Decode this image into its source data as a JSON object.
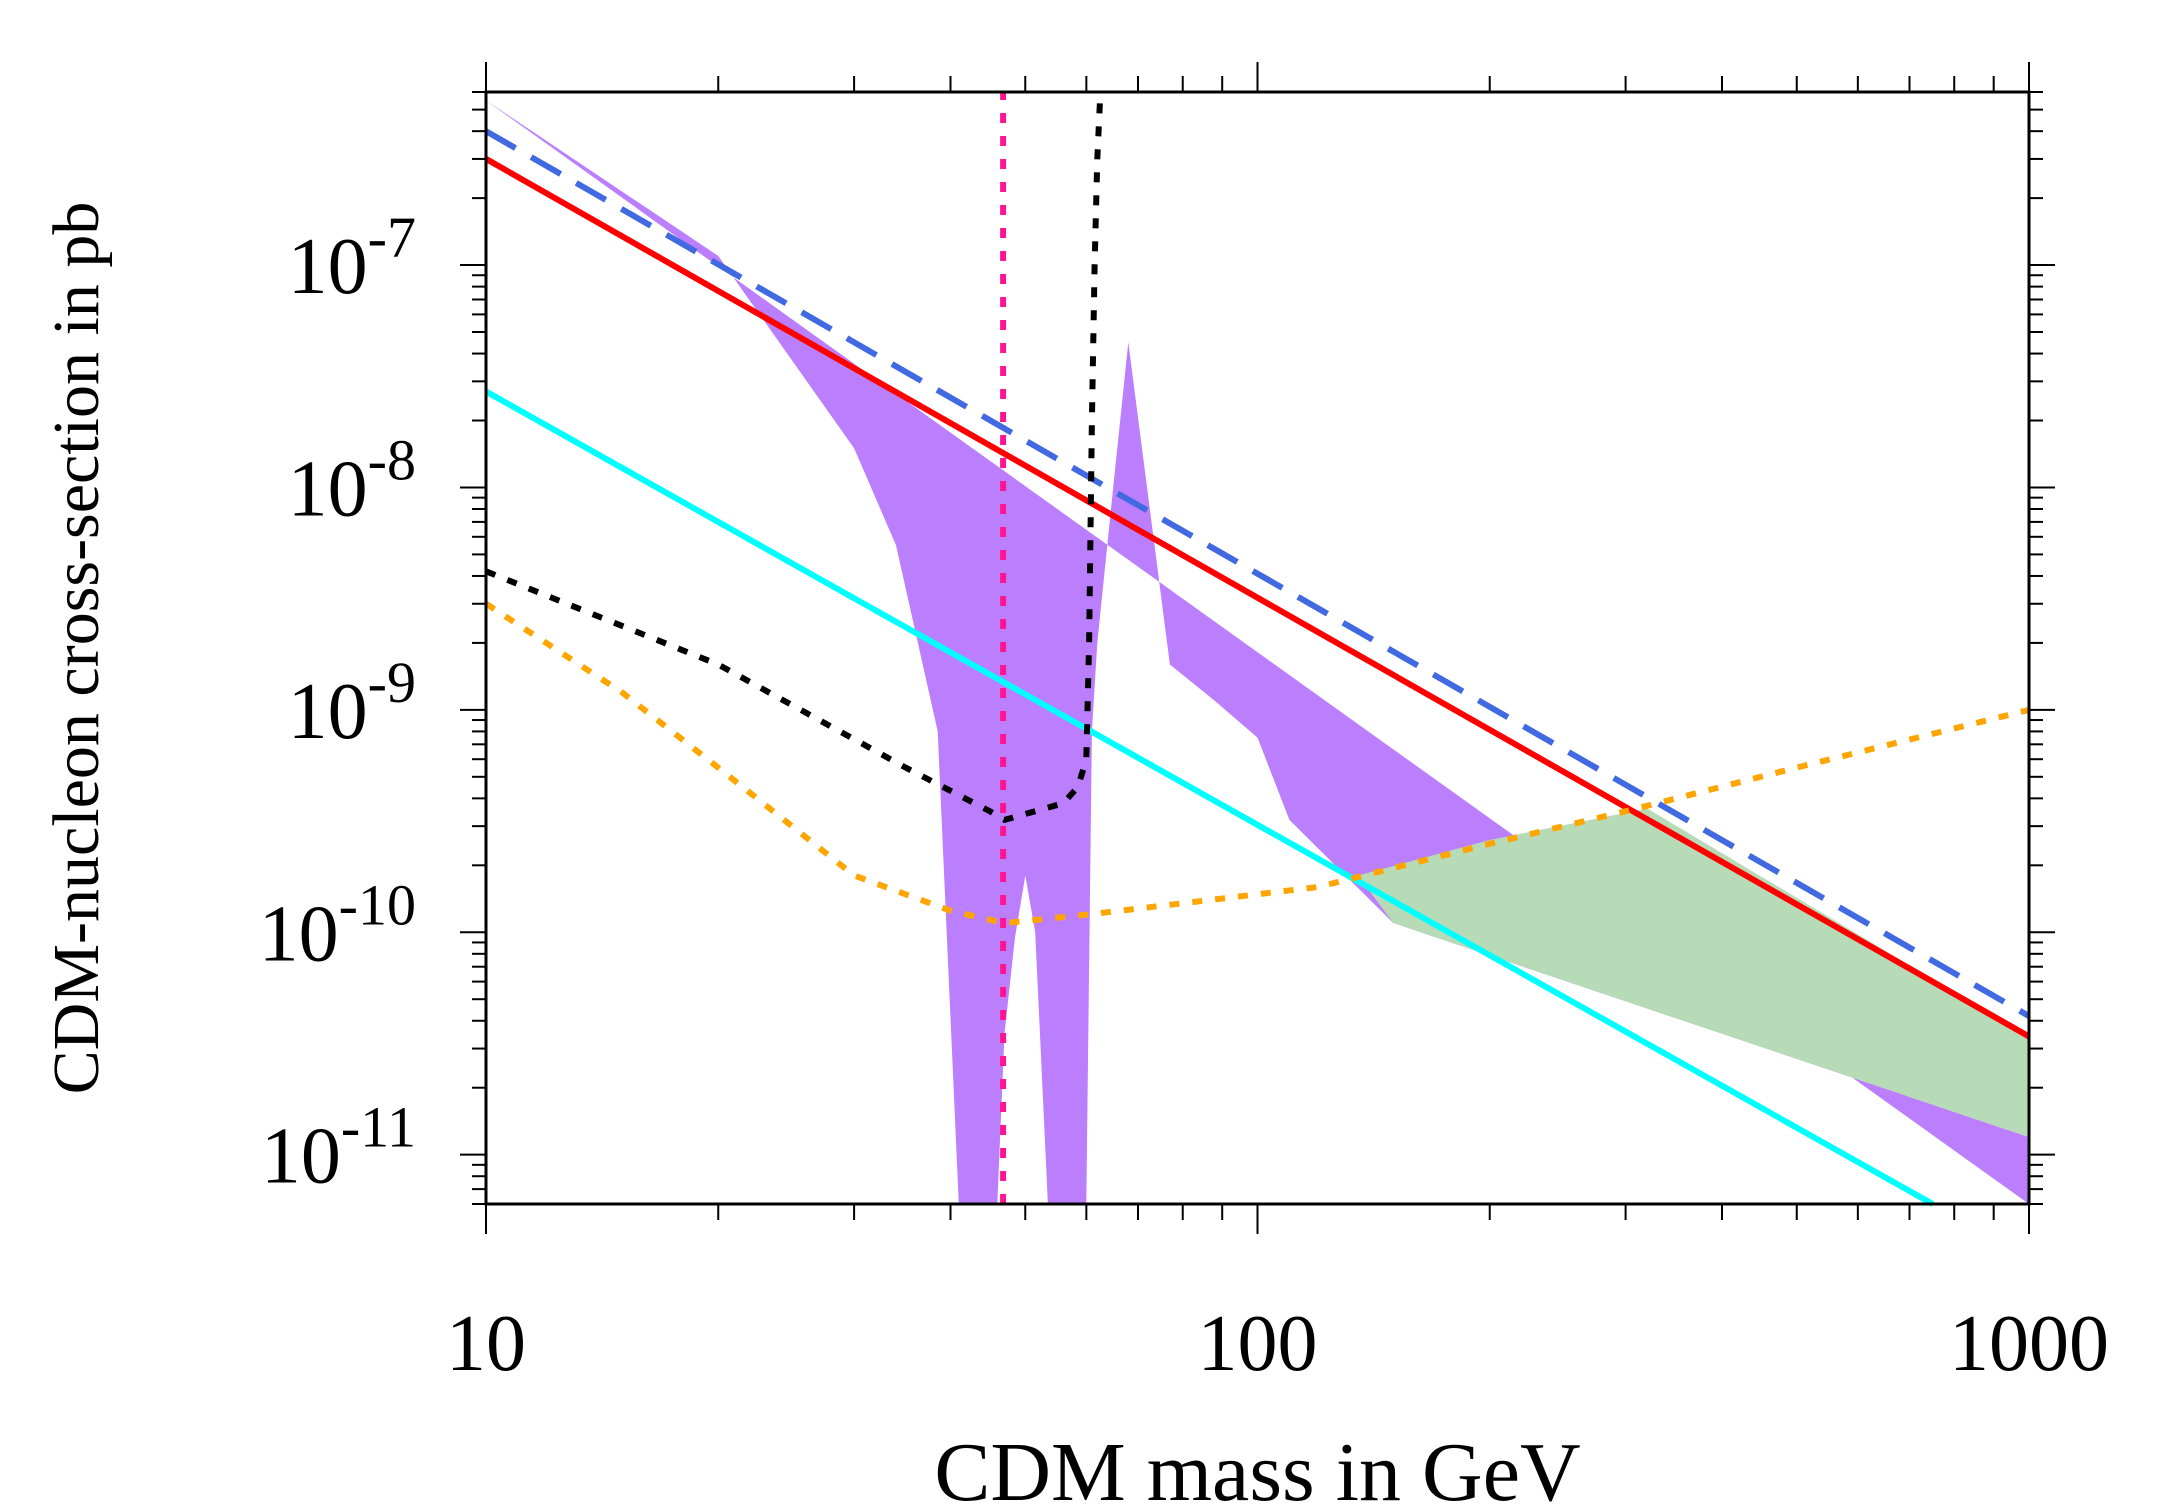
{
  "chart_data": {
    "type": "line",
    "xlabel": "CDM mass in GeV",
    "ylabel": "CDM-nucleon cross-section in pb",
    "xscale": "log",
    "yscale": "log",
    "xlim": [
      10,
      1000
    ],
    "ylim": [
      6e-12,
      6e-07
    ],
    "x_ticks": [
      {
        "value": 10,
        "label": "10"
      },
      {
        "value": 100,
        "label": "100"
      },
      {
        "value": 1000,
        "label": "1000"
      }
    ],
    "y_ticks": [
      {
        "value": 1e-07,
        "base": "10",
        "exp": "-7"
      },
      {
        "value": 1e-08,
        "base": "10",
        "exp": "-8"
      },
      {
        "value": 1e-09,
        "base": "10",
        "exp": "-9"
      },
      {
        "value": 1e-10,
        "base": "10",
        "exp": "-10"
      },
      {
        "value": 1e-11,
        "base": "10",
        "exp": "-11"
      }
    ],
    "grid": false,
    "legend": "none",
    "regions": [
      {
        "name": "purple-allowed-region",
        "color": "#bb7ffd",
        "x": [
          10,
          20,
          30,
          34,
          38.5,
          41,
          46,
          47,
          48.5,
          50,
          51.5,
          53.5,
          60,
          61,
          62,
          65,
          68,
          77,
          88,
          100,
          110,
          150,
          1000,
          1000
        ],
        "y": [
          5.5e-07,
          1.1e-07,
          1.5e-08,
          5.5e-09,
          8e-10,
          6e-12,
          6e-12,
          3.5e-11,
          9.5e-11,
          1.8e-10,
          1e-10,
          6e-12,
          6e-12,
          8e-10,
          2e-09,
          1e-08,
          4.5e-08,
          1.6e-09,
          1.1e-09,
          7.5e-10,
          3.2e-10,
          1.1e-10,
          1.2e-11,
          6e-12
        ]
      },
      {
        "name": "green-allowed-region",
        "color": "#b7dbb7",
        "x": [
          135,
          200,
          320,
          1000,
          1000,
          150
        ],
        "y": [
          1.8e-10,
          2.6e-10,
          3.6e-10,
          3.4e-11,
          1.2e-11,
          1.1e-10
        ]
      }
    ],
    "series": [
      {
        "name": "blue-dashed-limit",
        "color": "#4169e1",
        "style": "dashed",
        "x": [
          10,
          1000
        ],
        "y": [
          4e-07,
          4.2e-11
        ]
      },
      {
        "name": "red-solid-limit",
        "color": "#ff0000",
        "style": "solid",
        "x": [
          10,
          1000
        ],
        "y": [
          3e-07,
          3.4e-11
        ]
      },
      {
        "name": "cyan-solid-limit",
        "color": "#00ffff",
        "style": "solid",
        "x": [
          10,
          750
        ],
        "y": [
          2.7e-08,
          6e-12
        ]
      },
      {
        "name": "black-dotted-curve",
        "color": "#000000",
        "style": "dotted",
        "x": [
          10,
          20,
          35,
          45,
          47,
          56,
          58.5,
          60,
          60.5,
          61,
          61.5,
          62,
          62.5
        ],
        "y": [
          4.2e-09,
          1.6e-09,
          5.5e-10,
          3.5e-10,
          3.2e-10,
          3.8e-10,
          4.5e-10,
          6e-10,
          2e-09,
          2e-08,
          1e-07,
          3e-07,
          5.5e-07
        ]
      },
      {
        "name": "orange-dotted-curve",
        "color": "#ffa500",
        "style": "dotted",
        "x": [
          10,
          15,
          20,
          30,
          40,
          47,
          60,
          80,
          120,
          200,
          300,
          500,
          1000
        ],
        "y": [
          3e-09,
          1.2e-09,
          5.5e-10,
          1.8e-10,
          1.25e-10,
          1.1e-10,
          1.2e-10,
          1.35e-10,
          1.6e-10,
          2.5e-10,
          3.5e-10,
          5.5e-10,
          1e-09
        ]
      },
      {
        "name": "pink-vertical-dotted",
        "color": "#ff1493",
        "style": "dotted",
        "x": [
          46.8,
          46.8
        ],
        "y": [
          6e-12,
          6e-07
        ]
      }
    ]
  }
}
